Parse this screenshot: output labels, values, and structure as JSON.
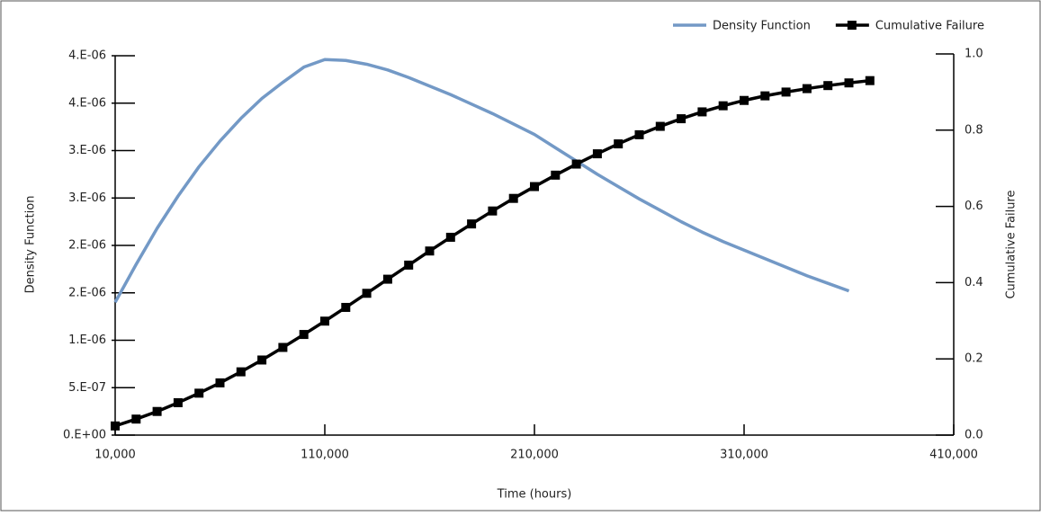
{
  "chart_data": {
    "type": "line",
    "x_label": "Time (hours)",
    "y_label": "Density Function",
    "y2_label": "Cumulative Failure",
    "x": [
      10000,
      20000,
      30000,
      40000,
      50000,
      60000,
      70000,
      80000,
      90000,
      100000,
      110000,
      120000,
      130000,
      140000,
      150000,
      160000,
      170000,
      180000,
      190000,
      200000,
      210000,
      220000,
      230000,
      240000,
      250000,
      260000,
      270000,
      280000,
      290000,
      300000,
      310000,
      320000,
      330000,
      340000,
      350000,
      360000,
      370000
    ],
    "series": [
      {
        "name": "Density Function",
        "color": "#7399c6",
        "marker": "none",
        "values": [
          1.4e-06,
          1.8e-06,
          2.18e-06,
          2.52e-06,
          2.83e-06,
          3.1e-06,
          3.34e-06,
          3.55e-06,
          3.72e-06,
          3.88e-06,
          3.96e-06,
          3.95e-06,
          3.91e-06,
          3.85e-06,
          3.77e-06,
          3.68e-06,
          3.59e-06,
          3.49e-06,
          3.39e-06,
          3.28e-06,
          3.17e-06,
          3.03e-06,
          2.89e-06,
          2.75e-06,
          2.62e-06,
          2.49e-06,
          2.37e-06,
          2.25e-06,
          2.14e-06,
          2.04e-06,
          1.95e-06,
          1.86e-06,
          1.77e-06,
          1.68e-06,
          1.6e-06,
          1.52e-06,
          null
        ]
      },
      {
        "name": "Cumulative Failure",
        "color": "#000000",
        "marker": "square",
        "axis": "y2",
        "values": [
          0.024,
          0.042,
          0.062,
          0.085,
          0.11,
          0.137,
          0.166,
          0.197,
          0.23,
          0.264,
          0.299,
          0.335,
          0.372,
          0.409,
          0.446,
          0.483,
          0.519,
          0.554,
          0.588,
          0.621,
          0.652,
          0.682,
          0.711,
          0.738,
          0.764,
          0.788,
          0.81,
          0.83,
          0.848,
          0.864,
          0.878,
          0.89,
          0.9,
          0.909,
          0.917,
          0.924,
          0.93
        ]
      }
    ],
    "xlim": [
      10000,
      410000
    ],
    "xticks": [
      {
        "value": 10000,
        "label": "10,000"
      },
      {
        "value": 110000,
        "label": "110,000"
      },
      {
        "value": 210000,
        "label": "210,000"
      },
      {
        "value": 310000,
        "label": "310,000"
      },
      {
        "value": 410000,
        "label": "410,000"
      }
    ],
    "ylim": [
      0,
      4e-06
    ],
    "yticks": [
      {
        "value": 0,
        "label": "0.E+00"
      },
      {
        "value": 5e-07,
        "label": "5.E-07"
      },
      {
        "value": 1e-06,
        "label": "1.E-06"
      },
      {
        "value": 1.5e-06,
        "label": "2.E-06"
      },
      {
        "value": 2e-06,
        "label": "2.E-06"
      },
      {
        "value": 2.5e-06,
        "label": "3.E-06"
      },
      {
        "value": 3e-06,
        "label": "3.E-06"
      },
      {
        "value": 3.5e-06,
        "label": "4.E-06"
      },
      {
        "value": 4e-06,
        "label": "4.E-06"
      }
    ],
    "y2lim": [
      0,
      1
    ],
    "y2ticks": [
      {
        "value": 0,
        "label": "0.0"
      },
      0.2,
      0.4,
      0.6,
      0.8,
      {
        "value": 1,
        "label": "1.0"
      }
    ],
    "legend": "upper right",
    "grid": false
  }
}
